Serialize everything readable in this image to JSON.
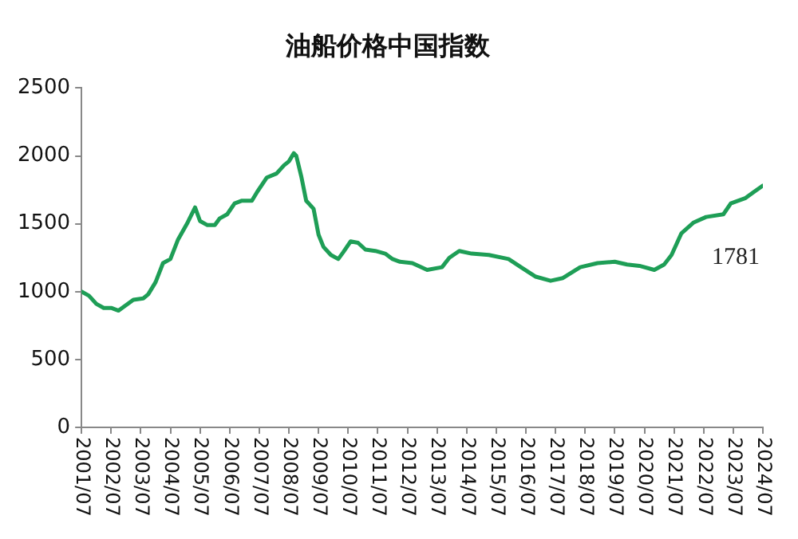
{
  "chart_data": {
    "type": "line",
    "title": "油船价格中国指数",
    "x": [
      "2001-07",
      "2001-10",
      "2002-01",
      "2002-04",
      "2002-07",
      "2002-10",
      "2003-01",
      "2003-04",
      "2003-08",
      "2003-10",
      "2004-01",
      "2004-04",
      "2004-07",
      "2004-10",
      "2005-02",
      "2005-05",
      "2005-07",
      "2005-10",
      "2006-01",
      "2006-03",
      "2006-06",
      "2006-09",
      "2006-12",
      "2007-04",
      "2007-06",
      "2007-10",
      "2008-02",
      "2008-05",
      "2008-07",
      "2008-09",
      "2008-10",
      "2008-12",
      "2009-02",
      "2009-05",
      "2009-07",
      "2009-09",
      "2009-12",
      "2010-03",
      "2010-05",
      "2010-08",
      "2010-11",
      "2011-02",
      "2011-06",
      "2011-10",
      "2012-01",
      "2012-04",
      "2012-09",
      "2013-03",
      "2013-09",
      "2013-12",
      "2014-04",
      "2014-09",
      "2015-04",
      "2015-12",
      "2016-05",
      "2016-11",
      "2017-05",
      "2017-10",
      "2018-05",
      "2018-12",
      "2019-07",
      "2019-12",
      "2020-05",
      "2020-11",
      "2021-03",
      "2021-06",
      "2021-10",
      "2022-03",
      "2022-08",
      "2023-03",
      "2023-06",
      "2023-12",
      "2024-03",
      "2024-07"
    ],
    "series": [
      {
        "color": "#1e9e56",
        "values": [
          1000,
          970,
          910,
          880,
          880,
          860,
          900,
          940,
          950,
          980,
          1070,
          1210,
          1240,
          1380,
          1510,
          1620,
          1520,
          1490,
          1490,
          1540,
          1570,
          1650,
          1670,
          1670,
          1730,
          1840,
          1870,
          1930,
          1960,
          2020,
          2000,
          1850,
          1670,
          1610,
          1420,
          1330,
          1270,
          1240,
          1290,
          1370,
          1360,
          1310,
          1300,
          1280,
          1240,
          1220,
          1210,
          1160,
          1180,
          1250,
          1300,
          1280,
          1270,
          1240,
          1180,
          1110,
          1080,
          1100,
          1180,
          1210,
          1220,
          1200,
          1190,
          1160,
          1200,
          1270,
          1430,
          1510,
          1550,
          1570,
          1650,
          1690,
          1730,
          1781
        ]
      }
    ],
    "xlim": [
      "2001-07",
      "2024-07"
    ],
    "xticks": [
      {
        "value": "2001-07",
        "label": "2001/07"
      },
      {
        "value": "2002-07",
        "label": "2002/07"
      },
      {
        "value": "2003-07",
        "label": "2003/07"
      },
      {
        "value": "2004-07",
        "label": "2004/07"
      },
      {
        "value": "2005-07",
        "label": "2005/07"
      },
      {
        "value": "2006-07",
        "label": "2006/07"
      },
      {
        "value": "2007-07",
        "label": "2007/07"
      },
      {
        "value": "2008-07",
        "label": "2008/07"
      },
      {
        "value": "2009-07",
        "label": "2009/07"
      },
      {
        "value": "2010-07",
        "label": "2010/07"
      },
      {
        "value": "2011-07",
        "label": "2011/07"
      },
      {
        "value": "2012-07",
        "label": "2012/07"
      },
      {
        "value": "2013-07",
        "label": "2013/07"
      },
      {
        "value": "2014-07",
        "label": "2014/07"
      },
      {
        "value": "2015-07",
        "label": "2015/07"
      },
      {
        "value": "2016-07",
        "label": "2016/07"
      },
      {
        "value": "2017-07",
        "label": "2017/07"
      },
      {
        "value": "2018-07",
        "label": "2018/07"
      },
      {
        "value": "2019-07",
        "label": "2019/07"
      },
      {
        "value": "2020-07",
        "label": "2020/07"
      },
      {
        "value": "2021-07",
        "label": "2021/07"
      },
      {
        "value": "2022-07",
        "label": "2022/07"
      },
      {
        "value": "2023-07",
        "label": "2023/07"
      },
      {
        "value": "2024-07",
        "label": "2024/07"
      }
    ],
    "ylim": [
      0,
      2500
    ],
    "yticks": [
      0,
      500,
      1000,
      1500,
      2000,
      2500
    ],
    "grid": false,
    "legend": false,
    "marker": "none",
    "line_style": "solid",
    "annotations": [
      {
        "text": "1781",
        "x": "2024-07",
        "y": 1781
      }
    ]
  }
}
